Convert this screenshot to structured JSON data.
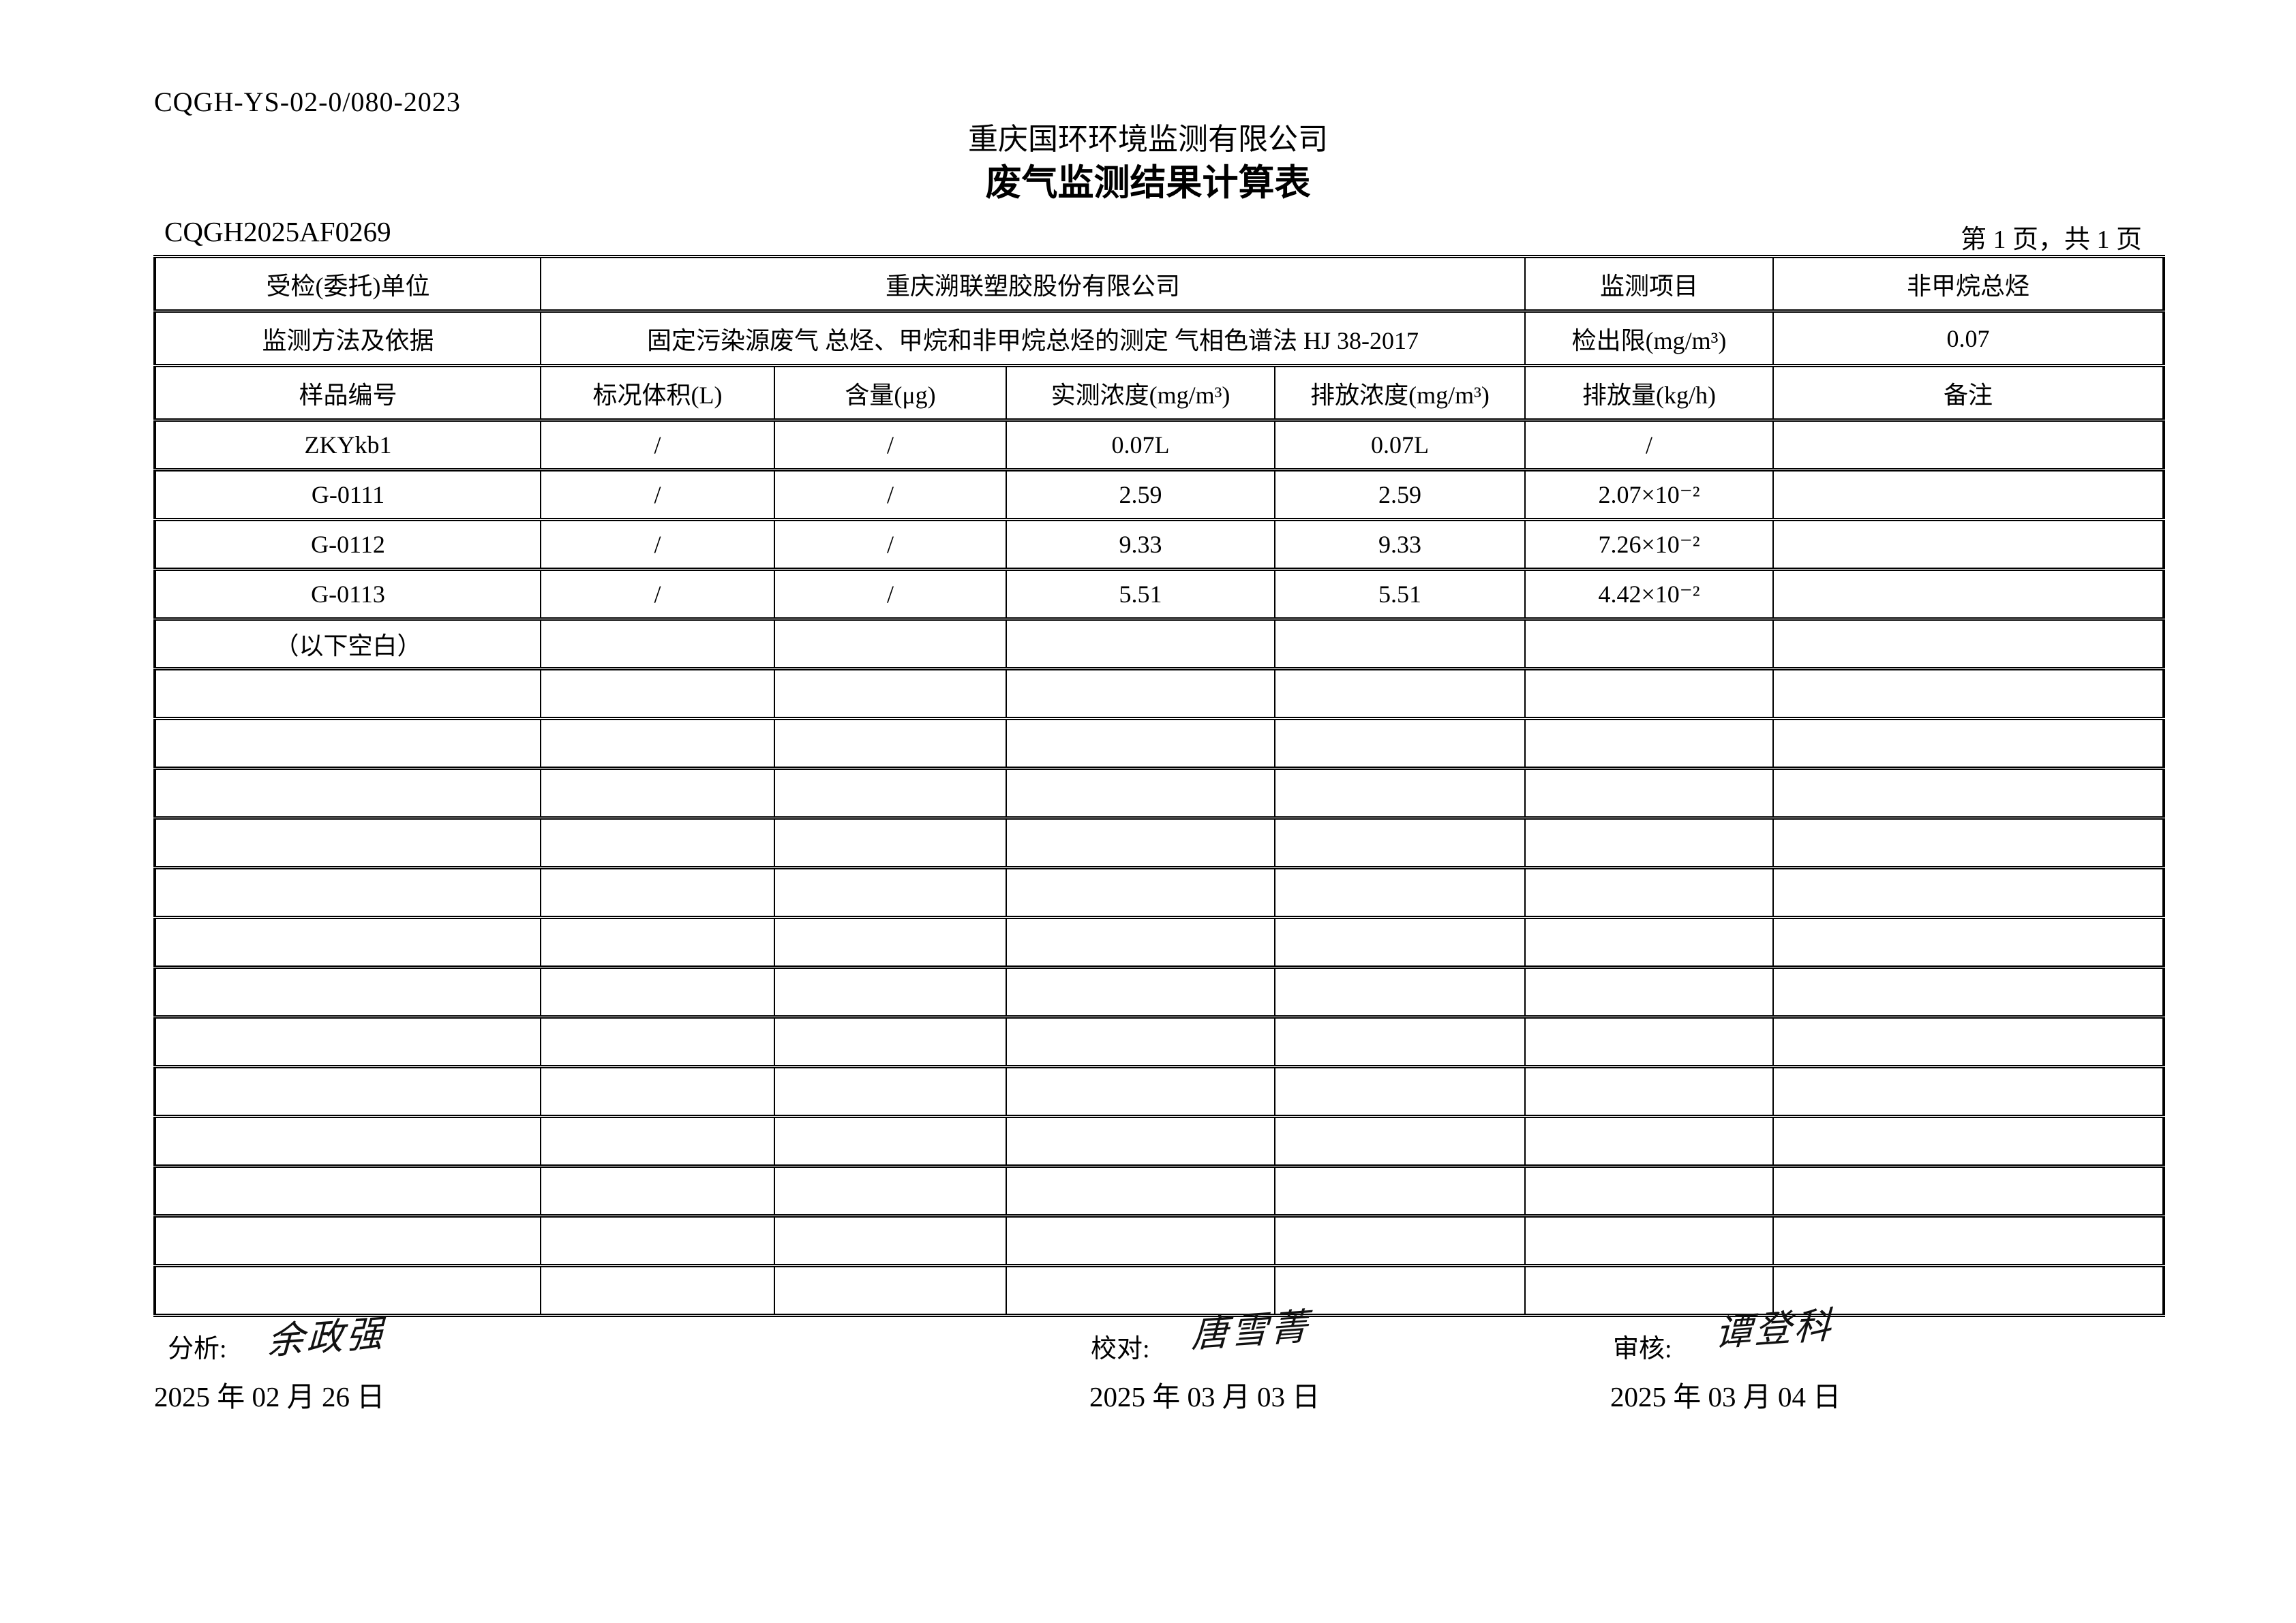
{
  "page": {
    "doc_code": "CQGH-YS-02-0/080-2023",
    "company_name": "重庆国环环境监测有限公司",
    "title": "废气监测结果计算表",
    "report_no": "CQGH2025AF0269",
    "page_info": "第 1 页，共 1 页"
  },
  "info": {
    "client_label": "受检(委托)单位",
    "client_value": "重庆溯联塑胶股份有限公司",
    "project_label": "监测项目",
    "project_value": "非甲烷总烃",
    "method_label": "监测方法及依据",
    "method_value": "固定污染源废气 总烃、甲烷和非甲烷总烃的测定 气相色谱法 HJ 38-2017",
    "detection_limit_label": "检出限(mg/m³)",
    "detection_limit_value": "0.07"
  },
  "table": {
    "headers": [
      "样品编号",
      "标况体积(L)",
      "含量(μg)",
      "实测浓度(mg/m³)",
      "排放浓度(mg/m³)",
      "排放量(kg/h)",
      "备注"
    ],
    "rows": [
      [
        "ZKYkb1",
        "/",
        "/",
        "0.07L",
        "0.07L",
        "/",
        ""
      ],
      [
        "G-0111",
        "/",
        "/",
        "2.59",
        "2.59",
        "2.07×10⁻²",
        ""
      ],
      [
        "G-0112",
        "/",
        "/",
        "9.33",
        "9.33",
        "7.26×10⁻²",
        ""
      ],
      [
        "G-0113",
        "/",
        "/",
        "5.51",
        "5.51",
        "4.42×10⁻²",
        ""
      ],
      [
        "（以下空白）",
        "",
        "",
        "",
        "",
        "",
        ""
      ],
      [
        "",
        "",
        "",
        "",
        "",
        "",
        ""
      ],
      [
        "",
        "",
        "",
        "",
        "",
        "",
        ""
      ],
      [
        "",
        "",
        "",
        "",
        "",
        "",
        ""
      ],
      [
        "",
        "",
        "",
        "",
        "",
        "",
        ""
      ],
      [
        "",
        "",
        "",
        "",
        "",
        "",
        ""
      ],
      [
        "",
        "",
        "",
        "",
        "",
        "",
        ""
      ],
      [
        "",
        "",
        "",
        "",
        "",
        "",
        ""
      ],
      [
        "",
        "",
        "",
        "",
        "",
        "",
        ""
      ],
      [
        "",
        "",
        "",
        "",
        "",
        "",
        ""
      ],
      [
        "",
        "",
        "",
        "",
        "",
        "",
        ""
      ],
      [
        "",
        "",
        "",
        "",
        "",
        "",
        ""
      ],
      [
        "",
        "",
        "",
        "",
        "",
        "",
        ""
      ],
      [
        "",
        "",
        "",
        "",
        "",
        "",
        ""
      ]
    ]
  },
  "footer": {
    "analyst_label": "分析:",
    "analyst_signature": "余政强",
    "analyst_date": "2025 年 02 月 26 日",
    "checker_label": "校对:",
    "checker_signature": "唐雪菁",
    "checker_date": "2025 年 03 月 03 日",
    "reviewer_label": "审核:",
    "reviewer_signature": "谭登科",
    "reviewer_date": "2025 年 03 月 04 日"
  }
}
